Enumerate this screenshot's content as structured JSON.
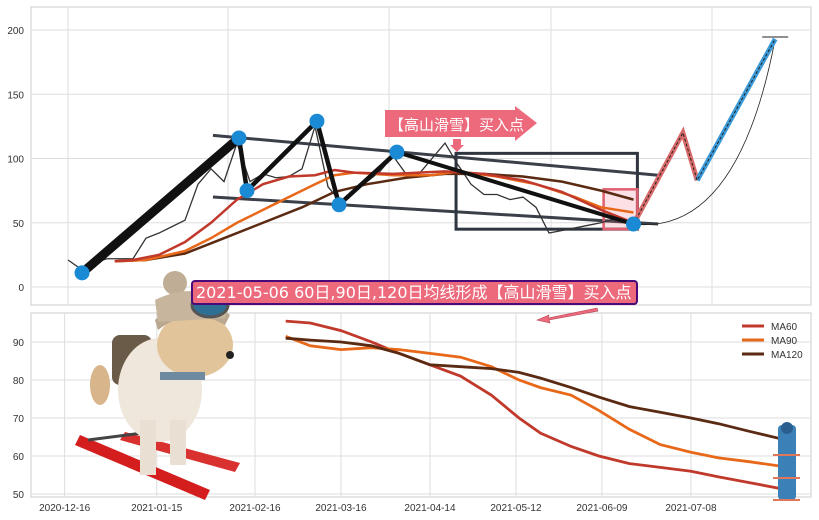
{
  "chart_data": [
    {
      "type": "line",
      "panel": "top",
      "yticks": [
        0,
        50,
        100,
        150,
        200
      ],
      "ylim": [
        -13,
        217
      ],
      "grid": true,
      "price": [
        21,
        14,
        19,
        22,
        22,
        22,
        38,
        42,
        47,
        52,
        80,
        92,
        82,
        112,
        82,
        88,
        85,
        86,
        92,
        125,
        78,
        66,
        74,
        82,
        90,
        102,
        88,
        88,
        100,
        112,
        95,
        80,
        72,
        72,
        68,
        70,
        62,
        42,
        44,
        46,
        48,
        50,
        53,
        52,
        52
      ],
      "ma60": [
        [
          3.6,
          20
        ],
        [
          5,
          21
        ],
        [
          7,
          25
        ],
        [
          9,
          35
        ],
        [
          11,
          50
        ],
        [
          13,
          68
        ],
        [
          15,
          80
        ],
        [
          17,
          86
        ],
        [
          19,
          87
        ],
        [
          20.5,
          91
        ],
        [
          22,
          89
        ],
        [
          25,
          88
        ],
        [
          29,
          90
        ],
        [
          32,
          88
        ],
        [
          35,
          83
        ],
        [
          38,
          74
        ],
        [
          41,
          60
        ],
        [
          43.5,
          50
        ]
      ],
      "ma90": [
        [
          3.6,
          20
        ],
        [
          6,
          21
        ],
        [
          9,
          28
        ],
        [
          11,
          38
        ],
        [
          13,
          50
        ],
        [
          15,
          60
        ],
        [
          17,
          70
        ],
        [
          19,
          80
        ],
        [
          20.5,
          87
        ],
        [
          22,
          89
        ],
        [
          25,
          87
        ],
        [
          28,
          87
        ],
        [
          30,
          90
        ],
        [
          33,
          86
        ],
        [
          36,
          80
        ],
        [
          39,
          70
        ],
        [
          41,
          62
        ],
        [
          43.5,
          58
        ]
      ],
      "ma120": [
        [
          3.6,
          20
        ],
        [
          6,
          21
        ],
        [
          9,
          26
        ],
        [
          12,
          38
        ],
        [
          15,
          50
        ],
        [
          18,
          62
        ],
        [
          20.5,
          74
        ],
        [
          23,
          80
        ],
        [
          26,
          85
        ],
        [
          29,
          88
        ],
        [
          32,
          88
        ],
        [
          35,
          86
        ],
        [
          38,
          82
        ],
        [
          41,
          75
        ],
        [
          43.5,
          68
        ]
      ],
      "pivots": [
        [
          1.08,
          11
        ],
        [
          13.15,
          116
        ],
        [
          13.77,
          75
        ],
        [
          19.15,
          129
        ],
        [
          20.85,
          64
        ],
        [
          25.3,
          105
        ],
        [
          43.5,
          49
        ]
      ],
      "trend_upper": [
        [
          11.15,
          118
        ],
        [
          45.4,
          87
        ]
      ],
      "trend_lower": [
        [
          11.15,
          70
        ],
        [
          45.4,
          49
        ]
      ],
      "box": {
        "x": [
          29.85,
          43.8
        ],
        "y": [
          45,
          104
        ]
      },
      "highlight": {
        "x": [
          41.2,
          43.8
        ],
        "y": [
          45,
          76
        ]
      },
      "projection": [
        [
          43.5,
          49
        ],
        [
          47.3,
          120
        ],
        [
          48.4,
          83
        ],
        [
          54.4,
          193
        ]
      ],
      "annotation": "【高山滑雪】买入点"
    },
    {
      "type": "line",
      "panel": "bottom",
      "xticks": [
        "2020-12-16",
        "2021-01-15",
        "2021-02-16",
        "2021-03-16",
        "2021-04-14",
        "2021-05-12",
        "2021-06-09",
        "2021-07-08"
      ],
      "yticks": [
        50,
        60,
        70,
        80,
        90
      ],
      "ylim": [
        49,
        97
      ],
      "grid": true,
      "legend": "top-right",
      "x": [
        "2021-02-26",
        "2021-03-06",
        "2021-03-16",
        "2021-03-26",
        "2021-04-04",
        "2021-04-14",
        "2021-04-24",
        "2021-05-04",
        "2021-05-13",
        "2021-05-20",
        "2021-05-30",
        "2021-06-08",
        "2021-06-18",
        "2021-06-28",
        "2021-07-08",
        "2021-07-17",
        "2021-07-27",
        "2021-08-09"
      ],
      "series": [
        {
          "name": "MA60",
          "color": "#c0392b",
          "values": [
            95.5,
            95,
            93,
            90,
            87,
            84,
            81,
            76,
            70,
            66,
            62.5,
            60,
            58,
            57,
            56,
            54.5,
            53,
            51
          ]
        },
        {
          "name": "MA90",
          "color": "#e8681a",
          "values": [
            91.5,
            89,
            88,
            88.5,
            88,
            87,
            86,
            83.5,
            80,
            78,
            76,
            72,
            67,
            63,
            61,
            59.5,
            58.5,
            57
          ]
        },
        {
          "name": "MA120",
          "color": "#5a2a12",
          "values": [
            91,
            90.5,
            90,
            89,
            87,
            84,
            83.5,
            83,
            82,
            80.5,
            78,
            75.5,
            73,
            71.5,
            70,
            68.5,
            66.5,
            64
          ]
        }
      ],
      "annotation": "2021-05-06 60日,90日,120日均线形成【高山滑雪】买入点"
    }
  ],
  "colors": {
    "pivot": "#1a8ad4",
    "callout": "#ec6a7c",
    "callout_border": "#4b0a7a",
    "box": "#2f3640"
  }
}
